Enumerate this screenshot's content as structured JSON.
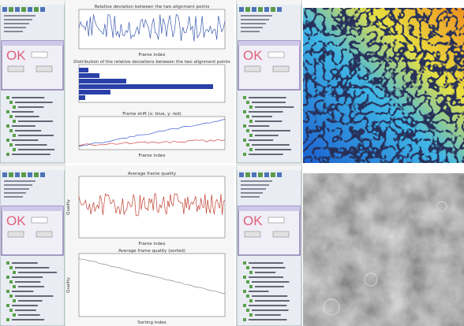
{
  "panels": [
    {
      "annotation": "OK",
      "charts": [
        {
          "title": "Relative deviation between the two alignment points",
          "x_label": "Frame index"
        },
        {
          "title": "Distribution of the relative deviations between the two alignment points"
        },
        {
          "title": "Frame shift (x: blue, y: red)",
          "x_label": "Frame index"
        }
      ]
    },
    {
      "annotation": "OK"
    },
    {
      "annotation": "OK",
      "charts": [
        {
          "title": "Average frame quality",
          "x_label": "Frame index",
          "y_label": "Quality"
        },
        {
          "title": "Average frame quality (sorted)",
          "x_label": "Sorting index",
          "y_label": "Quality"
        }
      ]
    },
    {
      "annotation": "OK"
    }
  ]
}
